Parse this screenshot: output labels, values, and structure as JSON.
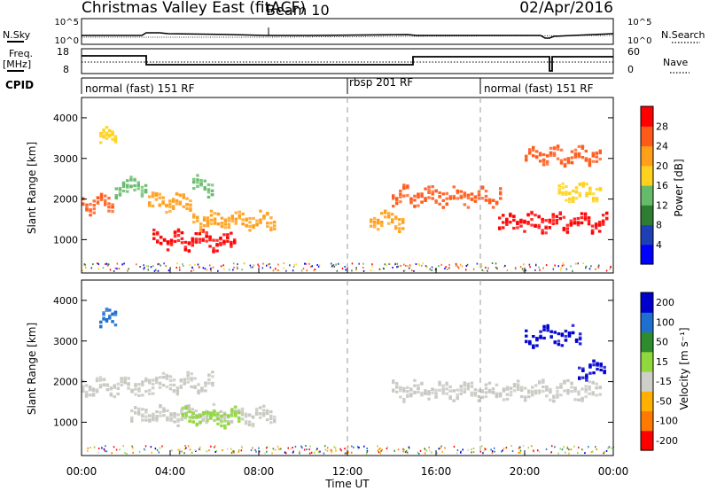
{
  "header": {
    "station": "Christmas Valley East (fitACF)",
    "beam": "Beam 10",
    "date": "02/Apr/2016"
  },
  "top_panels": {
    "nsky_label": "N.Sky",
    "nsearch_label": "N.Search",
    "noise_tick_top": "10^5",
    "noise_tick_bottom": "10^0",
    "freq_label_line1": "Freq.",
    "freq_label_line2": "[MHz]",
    "freq_ticks": [
      "18",
      "8"
    ],
    "nave_label": "Nave",
    "nave_ticks": [
      "60",
      "0"
    ],
    "cpid_label": "CPID"
  },
  "cpid_segments": [
    {
      "label": "normal (fast) 151 RF",
      "start_hour": 0,
      "end_hour": 12
    },
    {
      "label": "rbsp 201 RF",
      "start_hour": 12,
      "end_hour": 18
    },
    {
      "label": "normal (fast) 151 RF",
      "start_hour": 18,
      "end_hour": 24
    }
  ],
  "x_axis": {
    "label": "Time UT",
    "ticks": [
      "00:00",
      "04:00",
      "08:00",
      "12:00",
      "16:00",
      "20:00",
      "00:00"
    ]
  },
  "colors": {
    "power_scale": [
      "#0000ff",
      "#1f3fb4",
      "#2e7d32",
      "#66bb6a",
      "#ffd21f",
      "#ff9f1a",
      "#ff5a1a",
      "#ff0000"
    ],
    "velocity_scale": [
      "#ff0000",
      "#ff7a00",
      "#ffb000",
      "#cfcfc9",
      "#90d83c",
      "#2e8b2e",
      "#1f6fd0",
      "#0000cc"
    ],
    "ground_scatter": "#c8c8c2"
  },
  "chart_data": [
    {
      "type": "heatmap",
      "panel": "power",
      "ylabel": "Slant Range [km]",
      "yticks": [
        1000,
        2000,
        3000,
        4000
      ],
      "ylim": [
        180,
        4500
      ],
      "xlim_hours": [
        0,
        24
      ],
      "colorbar": {
        "label": "Power [dB]",
        "ticks": [
          4,
          8,
          12,
          16,
          20,
          24,
          28
        ],
        "range": [
          0,
          32
        ]
      },
      "dashed_lines_hours": [
        12,
        18
      ],
      "echo_bands": [
        {
          "start_hour": 0.0,
          "end_hour": 1.5,
          "range_km": 1900,
          "value_db": 26
        },
        {
          "start_hour": 1.5,
          "end_hour": 3.0,
          "range_km": 2300,
          "value_db": 14
        },
        {
          "start_hour": 0.8,
          "end_hour": 1.6,
          "range_km": 3600,
          "value_db": 18
        },
        {
          "start_hour": 3.0,
          "end_hour": 5.0,
          "range_km": 1950,
          "value_db": 20
        },
        {
          "start_hour": 5.0,
          "end_hour": 6.0,
          "range_km": 2350,
          "value_db": 12
        },
        {
          "start_hour": 3.2,
          "end_hour": 7.0,
          "range_km": 1000,
          "value_db": 28
        },
        {
          "start_hour": 5.0,
          "end_hour": 8.8,
          "range_km": 1500,
          "value_db": 22
        },
        {
          "start_hour": 13.0,
          "end_hour": 14.6,
          "range_km": 1500,
          "value_db": 20
        },
        {
          "start_hour": 14.0,
          "end_hour": 19.0,
          "range_km": 2100,
          "value_db": 24
        },
        {
          "start_hour": 18.8,
          "end_hour": 23.8,
          "range_km": 1450,
          "value_db": 28
        },
        {
          "start_hour": 20.0,
          "end_hour": 23.5,
          "range_km": 3100,
          "value_db": 24
        },
        {
          "start_hour": 21.5,
          "end_hour": 23.5,
          "range_km": 2200,
          "value_db": 16
        }
      ]
    },
    {
      "type": "heatmap",
      "panel": "velocity",
      "ylabel": "Slant Range [km]",
      "yticks": [
        1000,
        2000,
        3000,
        4000
      ],
      "ylim": [
        180,
        4500
      ],
      "xlim_hours": [
        0,
        24
      ],
      "colorbar": {
        "label": "Velocity [m s⁻¹]",
        "ticks": [
          200,
          100,
          50,
          15,
          -15,
          -50,
          -100,
          -200
        ]
      },
      "dashed_lines_hours": [
        12,
        18
      ],
      "echo_bands": [
        {
          "start_hour": 0.0,
          "end_hour": 3.0,
          "range_km": 1900,
          "value_ms": 0
        },
        {
          "start_hour": 3.0,
          "end_hour": 6.0,
          "range_km": 2000,
          "value_ms": 0
        },
        {
          "start_hour": 0.8,
          "end_hour": 1.6,
          "range_km": 3600,
          "value_ms": 180
        },
        {
          "start_hour": 2.2,
          "end_hour": 8.8,
          "range_km": 1200,
          "value_ms": 0
        },
        {
          "start_hour": 4.5,
          "end_hour": 7.2,
          "range_km": 1150,
          "value_ms": 40
        },
        {
          "start_hour": 14.0,
          "end_hour": 23.5,
          "range_km": 1800,
          "value_ms": 0
        },
        {
          "start_hour": 20.0,
          "end_hour": 22.6,
          "range_km": 3150,
          "value_ms": 230
        },
        {
          "start_hour": 22.4,
          "end_hour": 23.7,
          "range_km": 2300,
          "value_ms": 210
        }
      ]
    }
  ]
}
